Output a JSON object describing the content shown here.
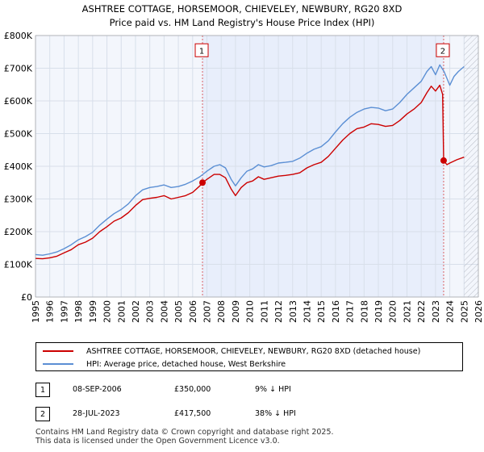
{
  "chart_data": {
    "type": "line",
    "title": "ASHTREE COTTAGE, HORSEMOOR, CHIEVELEY, NEWBURY, RG20 8XD",
    "subtitle": "Price paid vs. HM Land Registry's House Price Index (HPI)",
    "xlim": [
      1995,
      2026
    ],
    "ylim": [
      0,
      800000
    ],
    "x_ticks": [
      1995,
      1996,
      1997,
      1998,
      1999,
      2000,
      2001,
      2002,
      2003,
      2004,
      2005,
      2006,
      2007,
      2008,
      2009,
      2010,
      2011,
      2012,
      2013,
      2014,
      2015,
      2016,
      2017,
      2018,
      2019,
      2020,
      2021,
      2022,
      2023,
      2024,
      2025,
      2026
    ],
    "y_ticks": [
      {
        "value": 0,
        "label": "£0"
      },
      {
        "value": 100000,
        "label": "£100K"
      },
      {
        "value": 200000,
        "label": "£200K"
      },
      {
        "value": 300000,
        "label": "£300K"
      },
      {
        "value": 400000,
        "label": "£400K"
      },
      {
        "value": 500000,
        "label": "£500K"
      },
      {
        "value": 600000,
        "label": "£600K"
      },
      {
        "value": 700000,
        "label": "£700K"
      },
      {
        "value": 800000,
        "label": "£800K"
      }
    ],
    "grid": true,
    "shaded_periods": [
      {
        "from": 2006.69,
        "to": 2023.57,
        "color": "#e8eefb"
      }
    ],
    "hatched_period": {
      "from": 2025.0,
      "to": 2026.0
    },
    "series": [
      {
        "name": "ASHTREE COTTAGE, HORSEMOOR, CHIEVELEY, NEWBURY, RG20 8XD (detached house)",
        "color": "#cc0000",
        "x": [
          1995.0,
          1995.5,
          1996.0,
          1996.5,
          1997.0,
          1997.5,
          1998.0,
          1998.5,
          1999.0,
          1999.5,
          2000.0,
          2000.5,
          2001.0,
          2001.5,
          2002.0,
          2002.5,
          2003.0,
          2003.5,
          2004.0,
          2004.5,
          2005.0,
          2005.5,
          2006.0,
          2006.5,
          2006.69,
          2007.0,
          2007.5,
          2007.9,
          2008.3,
          2008.7,
          2009.0,
          2009.4,
          2009.8,
          2010.2,
          2010.6,
          2011.0,
          2011.5,
          2012.0,
          2012.5,
          2013.0,
          2013.5,
          2014.0,
          2014.5,
          2015.0,
          2015.5,
          2016.0,
          2016.5,
          2017.0,
          2017.5,
          2018.0,
          2018.5,
          2019.0,
          2019.5,
          2020.0,
          2020.5,
          2021.0,
          2021.5,
          2022.0,
          2022.4,
          2022.7,
          2023.0,
          2023.3,
          2023.5,
          2023.57,
          2023.8,
          2024.0,
          2024.5,
          2025.0
        ],
        "y": [
          118000,
          117000,
          120000,
          125000,
          135000,
          145000,
          160000,
          168000,
          180000,
          200000,
          215000,
          232000,
          242000,
          258000,
          280000,
          298000,
          302000,
          305000,
          310000,
          300000,
          305000,
          310000,
          320000,
          340000,
          350000,
          360000,
          375000,
          375000,
          365000,
          330000,
          310000,
          335000,
          350000,
          355000,
          368000,
          360000,
          365000,
          370000,
          372000,
          375000,
          380000,
          395000,
          405000,
          412000,
          430000,
          455000,
          480000,
          500000,
          515000,
          520000,
          530000,
          528000,
          522000,
          525000,
          540000,
          560000,
          575000,
          595000,
          625000,
          645000,
          630000,
          648000,
          620000,
          417500,
          405000,
          410000,
          420000,
          428000
        ]
      },
      {
        "name": "HPI: Average price, detached house, West Berkshire",
        "color": "#5b8fd4",
        "x": [
          1995.0,
          1995.5,
          1996.0,
          1996.5,
          1997.0,
          1997.5,
          1998.0,
          1998.5,
          1999.0,
          1999.5,
          2000.0,
          2000.5,
          2001.0,
          2001.5,
          2002.0,
          2002.5,
          2003.0,
          2003.5,
          2004.0,
          2004.5,
          2005.0,
          2005.5,
          2006.0,
          2006.5,
          2007.0,
          2007.5,
          2007.9,
          2008.3,
          2008.7,
          2009.0,
          2009.4,
          2009.8,
          2010.2,
          2010.6,
          2011.0,
          2011.5,
          2012.0,
          2012.5,
          2013.0,
          2013.5,
          2014.0,
          2014.5,
          2015.0,
          2015.5,
          2016.0,
          2016.5,
          2017.0,
          2017.5,
          2018.0,
          2018.5,
          2019.0,
          2019.5,
          2020.0,
          2020.5,
          2021.0,
          2021.5,
          2022.0,
          2022.4,
          2022.7,
          2023.0,
          2023.3,
          2023.6,
          2024.0,
          2024.3,
          2024.6,
          2025.0
        ],
        "y": [
          130000,
          128000,
          132000,
          138000,
          148000,
          160000,
          175000,
          185000,
          198000,
          220000,
          238000,
          255000,
          268000,
          285000,
          310000,
          328000,
          335000,
          338000,
          343000,
          335000,
          338000,
          345000,
          355000,
          368000,
          385000,
          400000,
          405000,
          395000,
          360000,
          340000,
          365000,
          385000,
          392000,
          405000,
          398000,
          402000,
          410000,
          412000,
          415000,
          425000,
          440000,
          452000,
          460000,
          478000,
          505000,
          530000,
          550000,
          565000,
          575000,
          580000,
          578000,
          570000,
          575000,
          595000,
          620000,
          640000,
          660000,
          690000,
          705000,
          680000,
          710000,
          690000,
          648000,
          675000,
          690000,
          705000
        ]
      }
    ],
    "markers": [
      {
        "label": "1",
        "x": 2006.69,
        "y": 350000,
        "box_y": 750000
      },
      {
        "label": "2",
        "x": 2023.57,
        "y": 417500,
        "box_y": 750000
      }
    ],
    "legend": {
      "placement": "below",
      "entries": [
        {
          "label": "ASHTREE COTTAGE, HORSEMOOR, CHIEVELEY, NEWBURY, RG20 8XD (detached house)",
          "color": "#cc0000"
        },
        {
          "label": "HPI: Average price, detached house, West Berkshire",
          "color": "#5b8fd4"
        }
      ]
    }
  },
  "transactions": [
    {
      "num": "1",
      "date": "08-SEP-2006",
      "price": "£350,000",
      "hpi": "9% ↓ HPI"
    },
    {
      "num": "2",
      "date": "28-JUL-2023",
      "price": "£417,500",
      "hpi": "38% ↓ HPI"
    }
  ],
  "footer": {
    "line1": "Contains HM Land Registry data © Crown copyright and database right 2025.",
    "line2": "This data is licensed under the Open Government Licence v3.0."
  },
  "colors": {
    "plot_bg": "#f3f6fc",
    "grid": "#d8dfea",
    "marker_line": "#cc0000",
    "text": "#000000"
  }
}
